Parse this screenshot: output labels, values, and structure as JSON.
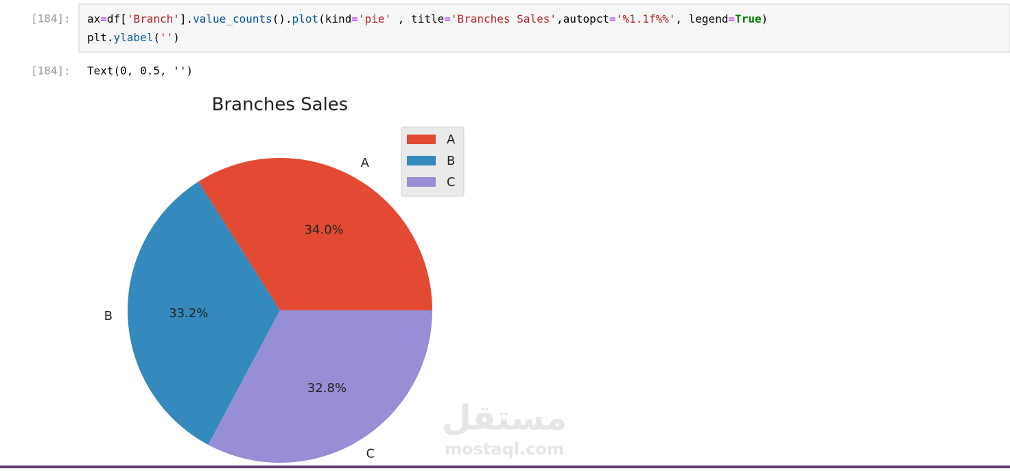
{
  "cell": {
    "input_prompt": "[184]:",
    "code_lines": [
      [
        {
          "text": "ax",
          "color": "#000000"
        },
        {
          "text": "=",
          "color": "#aa22ff"
        },
        {
          "text": "df[",
          "color": "#000000"
        },
        {
          "text": "'Branch'",
          "color": "#ba2121"
        },
        {
          "text": "].",
          "color": "#000000"
        },
        {
          "text": "value_counts",
          "color": "#0055aa"
        },
        {
          "text": "().",
          "color": "#000000"
        },
        {
          "text": "plot",
          "color": "#0055aa"
        },
        {
          "text": "(kind",
          "color": "#000000"
        },
        {
          "text": "=",
          "color": "#aa22ff"
        },
        {
          "text": "'pie'",
          "color": "#ba2121"
        },
        {
          "text": " , title",
          "color": "#000000"
        },
        {
          "text": "=",
          "color": "#aa22ff"
        },
        {
          "text": "'Branches Sales'",
          "color": "#ba2121"
        },
        {
          "text": ",autopct",
          "color": "#000000"
        },
        {
          "text": "=",
          "color": "#aa22ff"
        },
        {
          "text": "'%1.1f%%'",
          "color": "#ba2121"
        },
        {
          "text": ", legend",
          "color": "#000000"
        },
        {
          "text": "=",
          "color": "#aa22ff"
        },
        {
          "text": "True",
          "color": "#008000"
        },
        {
          "text": ")",
          "color": "#000000"
        }
      ],
      [
        {
          "text": "plt.",
          "color": "#000000"
        },
        {
          "text": "ylabel",
          "color": "#0055aa"
        },
        {
          "text": "(",
          "color": "#000000"
        },
        {
          "text": "''",
          "color": "#ba2121"
        },
        {
          "text": ")",
          "color": "#000000"
        }
      ]
    ],
    "output_prompt": "[184]:",
    "output_text": "Text(0, 0.5, '')"
  },
  "chart_data": {
    "type": "pie",
    "title": "Branches Sales",
    "categories": [
      "A",
      "B",
      "C"
    ],
    "values": [
      34.0,
      33.2,
      32.8
    ],
    "value_labels": [
      "34.0%",
      "33.2%",
      "32.8%"
    ],
    "colors": [
      "#E24A33",
      "#348ABD",
      "#988ED5"
    ],
    "legend": true,
    "legend_loc": "upper right"
  },
  "watermark": {
    "arabic": "مستقل",
    "latin": "mostaql.com"
  }
}
